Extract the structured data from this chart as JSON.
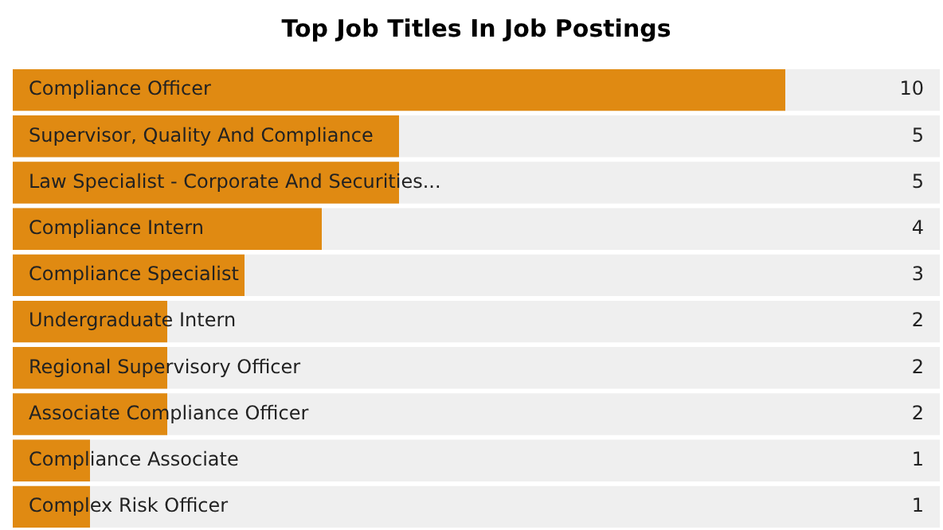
{
  "chart_data": {
    "type": "bar",
    "orientation": "horizontal",
    "title": "Top Job Titles In Job Postings",
    "categories": [
      "Compliance Officer",
      "Supervisor, Quality And Compliance",
      "Law Specialist - Corporate And Securities...",
      "Compliance Intern",
      "Compliance Specialist",
      "Undergraduate Intern",
      "Regional Supervisory Officer",
      "Associate Compliance Officer",
      "Compliance Associate",
      "Complex Risk Officer"
    ],
    "values": [
      10,
      5,
      5,
      4,
      3,
      2,
      2,
      2,
      1,
      1
    ],
    "color": "#e08a12",
    "xlim": [
      0,
      12
    ],
    "data_labels": true,
    "legend": false,
    "tick_labels": false
  }
}
